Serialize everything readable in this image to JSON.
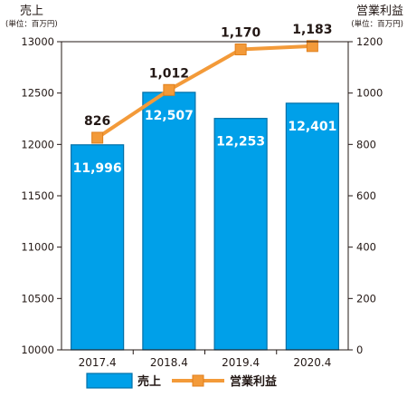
{
  "chart_data": {
    "type": "bar+line",
    "categories": [
      "2017.4",
      "2018.4",
      "2019.4",
      "2020.4"
    ],
    "series": [
      {
        "name": "売上",
        "type": "bar",
        "axis": "left",
        "color": "#00a0e9",
        "values": [
          11996,
          12507,
          12253,
          12401
        ],
        "labels": [
          "11,996",
          "12,507",
          "12,253",
          "12,401"
        ]
      },
      {
        "name": "営業利益",
        "type": "line",
        "axis": "right",
        "color": "#f39a39",
        "values": [
          826,
          1012,
          1170,
          1183
        ],
        "labels": [
          "826",
          "1,012",
          "1,170",
          "1,183"
        ]
      }
    ],
    "left_axis": {
      "title": "売上",
      "unit": "(単位：百万円)",
      "range": [
        10000,
        13000
      ],
      "ticks": [
        "10000",
        "10500",
        "11000",
        "11500",
        "12000",
        "12500",
        "13000"
      ]
    },
    "right_axis": {
      "title": "営業利益",
      "unit": "(単位：百万円)",
      "range": [
        0,
        1200
      ],
      "ticks": [
        "0",
        "200",
        "400",
        "600",
        "800",
        "1000",
        "1200"
      ]
    },
    "legend_position": "bottom",
    "grid": false
  }
}
